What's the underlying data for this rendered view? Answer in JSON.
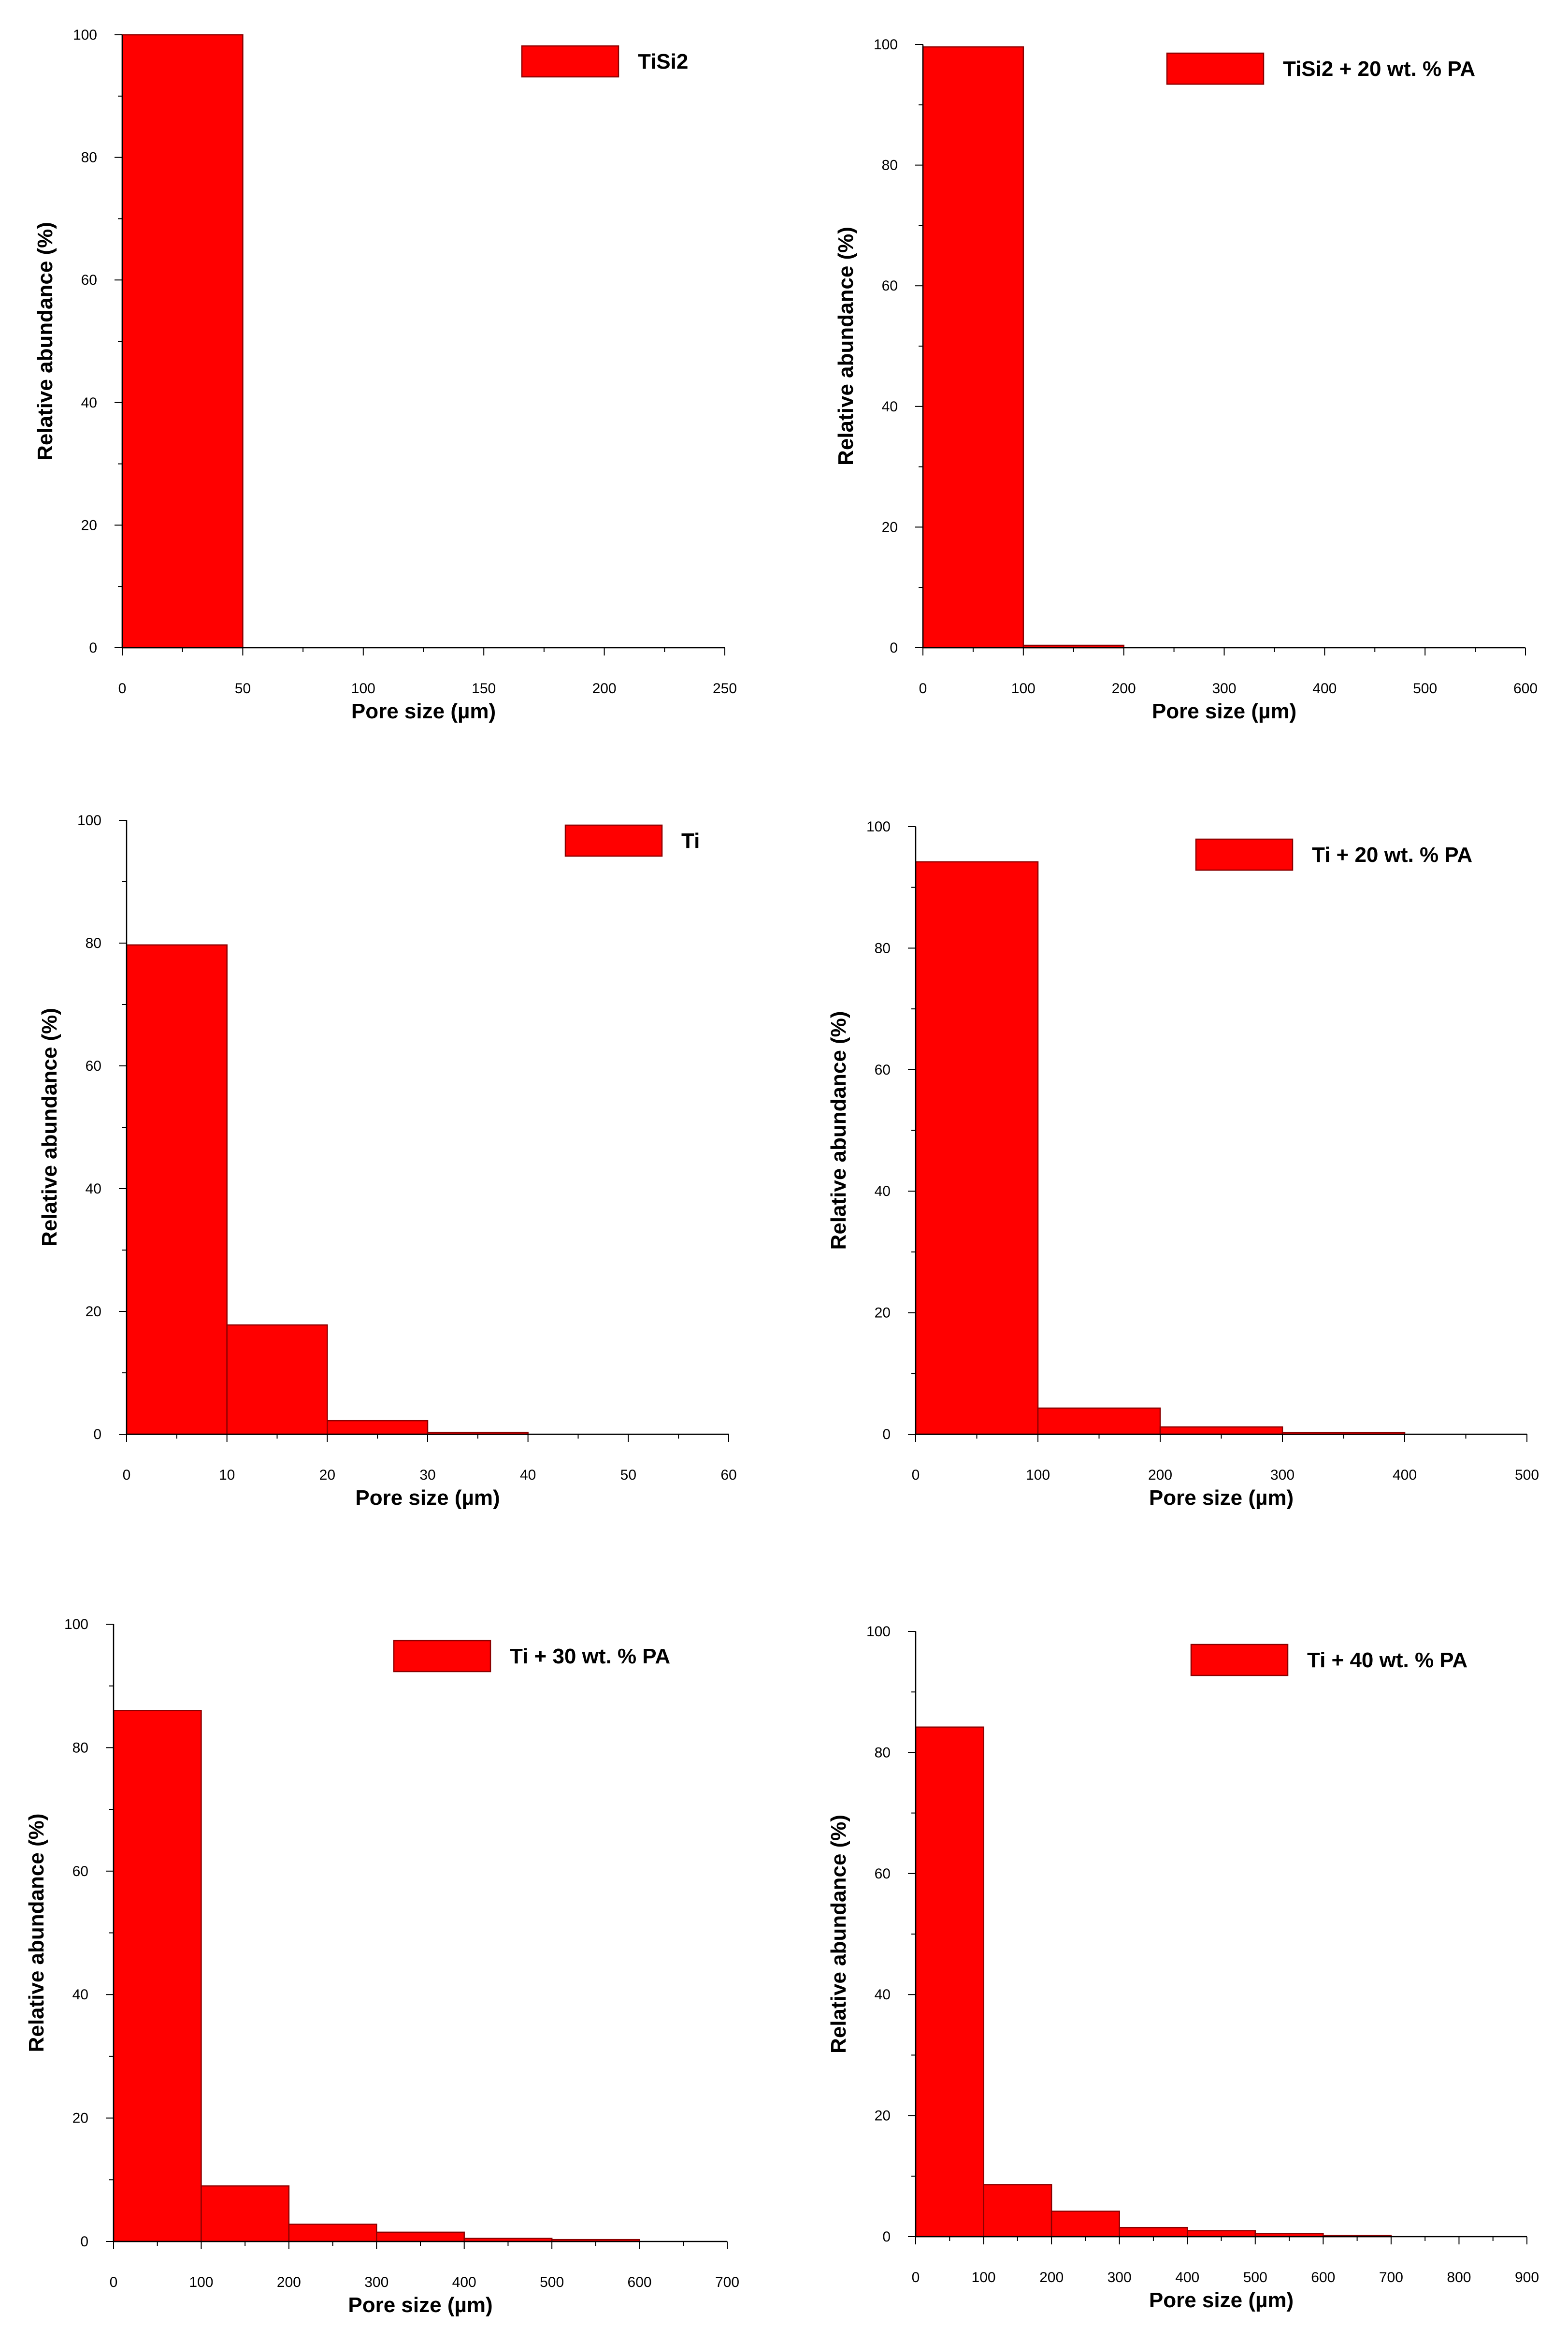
{
  "colors": {
    "bar_fill": "#ff0000",
    "bar_stroke": "#8a0000",
    "axis": "#000000",
    "background": "#ffffff"
  },
  "chart_data": [
    {
      "type": "bar",
      "series_name": "TiSi2",
      "xlabel": "Pore size (µm)",
      "ylabel": "Relative abundance (%)",
      "xlim": [
        0,
        250
      ],
      "ylim": [
        0,
        100
      ],
      "x_ticks": [
        0,
        50,
        100,
        150,
        200,
        250
      ],
      "y_ticks": [
        0,
        20,
        40,
        60,
        80,
        100
      ],
      "bin_width": 50,
      "bins": [
        [
          0,
          50
        ],
        [
          50,
          100
        ],
        [
          100,
          150
        ],
        [
          150,
          200
        ],
        [
          200,
          250
        ]
      ],
      "values": [
        100,
        0,
        0,
        0,
        0
      ],
      "legend": "top-right"
    },
    {
      "type": "bar",
      "series_name": "TiSi2 + 20 wt. % PA",
      "xlabel": "Pore size (µm)",
      "ylabel": "Relative abundance (%)",
      "xlim": [
        0,
        600
      ],
      "ylim": [
        0,
        100
      ],
      "x_ticks": [
        0,
        100,
        200,
        300,
        400,
        500,
        600
      ],
      "y_ticks": [
        0,
        20,
        40,
        60,
        80,
        100
      ],
      "bin_width": 100,
      "bins": [
        [
          0,
          100
        ],
        [
          100,
          200
        ],
        [
          200,
          300
        ],
        [
          300,
          400
        ],
        [
          400,
          500
        ],
        [
          500,
          600
        ]
      ],
      "values": [
        99.6,
        0.4,
        0,
        0,
        0,
        0
      ],
      "legend": "top-right"
    },
    {
      "type": "bar",
      "series_name": "Ti",
      "xlabel": "Pore size (µm)",
      "ylabel": "Relative abundance (%)",
      "xlim": [
        0,
        60
      ],
      "ylim": [
        0,
        100
      ],
      "x_ticks": [
        0,
        10,
        20,
        30,
        40,
        50,
        60
      ],
      "y_ticks": [
        0,
        20,
        40,
        60,
        80,
        100
      ],
      "bin_width": 10,
      "bins": [
        [
          0,
          10
        ],
        [
          10,
          20
        ],
        [
          20,
          30
        ],
        [
          30,
          40
        ],
        [
          40,
          50
        ],
        [
          50,
          60
        ]
      ],
      "values": [
        79.7,
        17.8,
        2.2,
        0.3,
        0,
        0
      ],
      "legend": "top-right"
    },
    {
      "type": "bar",
      "series_name": "Ti + 20 wt. % PA",
      "xlabel": "Pore size (µm)",
      "ylabel": "Relative abundance (%)",
      "xlim": [
        0,
        500
      ],
      "ylim": [
        0,
        100
      ],
      "x_ticks": [
        0,
        100,
        200,
        300,
        400,
        500
      ],
      "y_ticks": [
        0,
        20,
        40,
        60,
        80,
        100
      ],
      "bin_width": 100,
      "bins": [
        [
          0,
          100
        ],
        [
          100,
          200
        ],
        [
          200,
          300
        ],
        [
          300,
          400
        ],
        [
          400,
          500
        ]
      ],
      "values": [
        94.2,
        4.3,
        1.2,
        0.3,
        0
      ],
      "legend": "top-right"
    },
    {
      "type": "bar",
      "series_name": "Ti + 30 wt. % PA",
      "xlabel": "Pore size (µm)",
      "ylabel": "Relative abundance (%)",
      "xlim": [
        0,
        700
      ],
      "ylim": [
        0,
        100
      ],
      "x_ticks": [
        0,
        100,
        200,
        300,
        400,
        500,
        600,
        700
      ],
      "y_ticks": [
        0,
        20,
        40,
        60,
        80,
        100
      ],
      "bin_width": 100,
      "bins": [
        [
          0,
          100
        ],
        [
          100,
          200
        ],
        [
          200,
          300
        ],
        [
          300,
          400
        ],
        [
          400,
          500
        ],
        [
          500,
          600
        ],
        [
          600,
          700
        ]
      ],
      "values": [
        86,
        9,
        2.8,
        1.5,
        0.5,
        0.3,
        0
      ],
      "legend": "top-right"
    },
    {
      "type": "bar",
      "series_name": "Ti + 40 wt. % PA",
      "xlabel": "Pore size (µm)",
      "ylabel": "Relative abundance (%)",
      "xlim": [
        0,
        900
      ],
      "ylim": [
        0,
        100
      ],
      "x_ticks": [
        0,
        100,
        200,
        300,
        400,
        500,
        600,
        700,
        800,
        900
      ],
      "y_ticks": [
        0,
        20,
        40,
        60,
        80,
        100
      ],
      "bin_width": 100,
      "bins": [
        [
          0,
          100
        ],
        [
          100,
          200
        ],
        [
          200,
          300
        ],
        [
          300,
          400
        ],
        [
          400,
          500
        ],
        [
          500,
          600
        ],
        [
          600,
          700
        ],
        [
          700,
          800
        ],
        [
          800,
          900
        ]
      ],
      "values": [
        84.2,
        8.6,
        4.2,
        1.5,
        1,
        0.5,
        0.2,
        0,
        0
      ],
      "legend": "top-right"
    }
  ]
}
